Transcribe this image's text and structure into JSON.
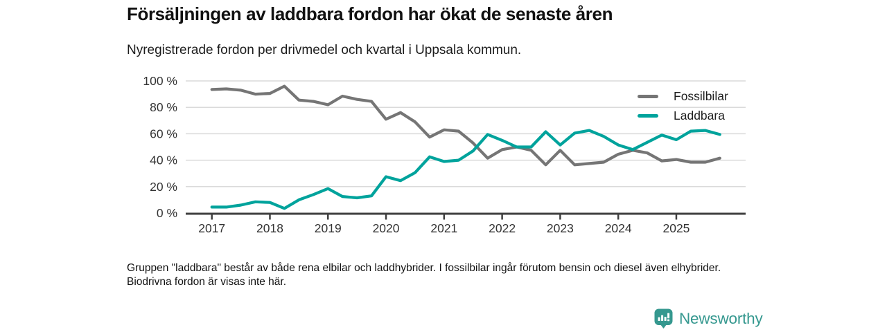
{
  "header": {
    "title": "Försäljningen av laddbara fordon har ökat de senaste åren",
    "subtitle": "Nyregistrerade fordon per drivmedel och kvartal i Uppsala kommun."
  },
  "chart_data": {
    "type": "line",
    "unit": "%",
    "x": [
      "2017-Q1",
      "2017-Q2",
      "2017-Q3",
      "2017-Q4",
      "2018-Q1",
      "2018-Q2",
      "2018-Q3",
      "2018-Q4",
      "2019-Q1",
      "2019-Q2",
      "2019-Q3",
      "2019-Q4",
      "2020-Q1",
      "2020-Q2",
      "2020-Q3",
      "2020-Q4",
      "2021-Q1",
      "2021-Q2",
      "2021-Q3",
      "2021-Q4",
      "2022-Q1",
      "2022-Q2",
      "2022-Q3",
      "2022-Q4",
      "2023-Q1",
      "2023-Q2",
      "2023-Q3",
      "2023-Q4",
      "2024-Q1",
      "2024-Q2",
      "2024-Q3",
      "2024-Q4",
      "2025-Q1",
      "2025-Q2",
      "2025-Q3",
      "2025-Q4"
    ],
    "series": [
      {
        "name": "Fossilbilar",
        "color": "#757575",
        "values": [
          93.5,
          94,
          93,
          90,
          90.5,
          96,
          85.5,
          84.5,
          82,
          88.5,
          86,
          84.5,
          71,
          76,
          69,
          57.5,
          63,
          62,
          53,
          41.5,
          48,
          50,
          47.5,
          36.5,
          47.5,
          36.5,
          37.5,
          38.5,
          44.5,
          47.5,
          45.5,
          39.5,
          40.5,
          38.5,
          38.5,
          41.5
        ]
      },
      {
        "name": "Laddbara",
        "color": "#00a39c",
        "values": [
          4.5,
          4.5,
          6,
          8.5,
          8,
          3.5,
          10,
          14,
          18.5,
          12.5,
          11.5,
          13,
          27.5,
          24.5,
          30.5,
          42.5,
          39,
          40,
          47,
          59.5,
          55,
          50,
          50,
          61.5,
          51.5,
          60.5,
          62.5,
          58,
          51.5,
          48,
          53.5,
          59,
          55.5,
          62,
          62.5,
          59.5
        ]
      }
    ],
    "ylim": [
      0,
      100
    ],
    "yticks": [
      0,
      20,
      40,
      60,
      80,
      100
    ],
    "ytick_labels": [
      "0 %",
      "20 %",
      "40 %",
      "60 %",
      "80 %",
      "100 %"
    ],
    "xtick_year_labels": [
      "2017",
      "2018",
      "2019",
      "2020",
      "2021",
      "2022",
      "2023",
      "2024",
      "2025"
    ],
    "grid": true,
    "legend_position": "top-right",
    "title": "Försäljningen av laddbara fordon har ökat de senaste åren",
    "xlabel": "",
    "ylabel": ""
  },
  "footer": {
    "note": "Gruppen \"laddbara\" består av både rena elbilar och laddhybrider. I fossilbilar ingår förutom bensin och diesel även elhybrider. Biodrivna fordon är visas inte här."
  },
  "branding": {
    "logo_text": "Newsworthy",
    "logo_color": "#35988f"
  },
  "style_colors": {
    "gridline": "#dadada",
    "axis": "#3f3f3f",
    "tick_label": "#333333"
  }
}
